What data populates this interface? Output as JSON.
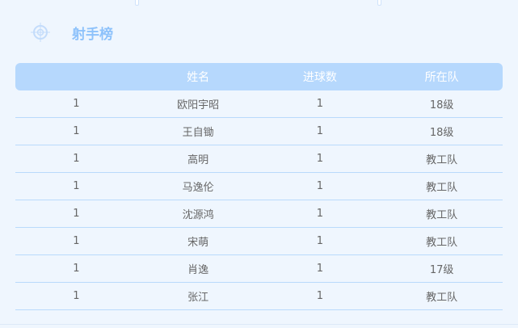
{
  "title": "射手榜",
  "columns": [
    "",
    "姓名",
    "进球数",
    "所在队"
  ],
  "rows": [
    [
      "1",
      "欧阳宇昭",
      "1",
      "18级"
    ],
    [
      "1",
      "王自锄",
      "1",
      "18级"
    ],
    [
      "1",
      "高明",
      "1",
      "教工队"
    ],
    [
      "1",
      "马逸伦",
      "1",
      "教工队"
    ],
    [
      "1",
      "沈源鸿",
      "1",
      "教工队"
    ],
    [
      "1",
      "宋萌",
      "1",
      "教工队"
    ],
    [
      "1",
      "肖逸",
      "1",
      "17级"
    ],
    [
      "1",
      "张江",
      "1",
      "教工队"
    ]
  ]
}
